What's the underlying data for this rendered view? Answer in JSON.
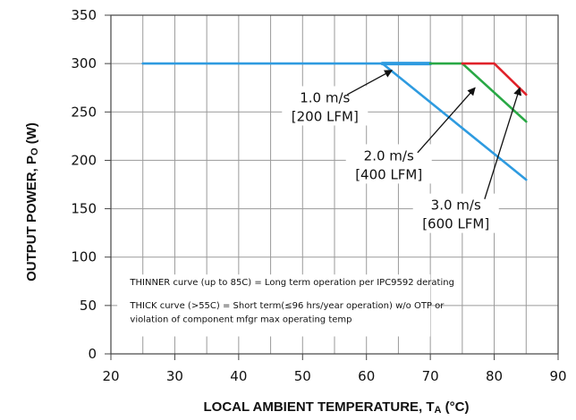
{
  "chart_data": {
    "type": "line",
    "xlabel": "LOCAL AMBIENT TEMPERATURE, T",
    "xlabel_sub": "A",
    "xlabel_tail": " (°C)",
    "ylabel": "OUTPUT POWER, P",
    "ylabel_sub": "O",
    "ylabel_tail": " (W)",
    "xlim": [
      20,
      90
    ],
    "ylim": [
      0,
      350
    ],
    "xticks": [
      20,
      30,
      40,
      50,
      60,
      70,
      80,
      90
    ],
    "yticks": [
      0,
      50,
      100,
      150,
      200,
      250,
      300,
      350
    ],
    "grid": true,
    "series": [
      {
        "color": "#2E9BE0",
        "points": [
          [
            25,
            300
          ],
          [
            62.5,
            300
          ],
          [
            85,
            180
          ]
        ]
      },
      {
        "color": "#2E9BE0",
        "thick": true,
        "points": [
          [
            62.5,
            300
          ],
          [
            70,
            300
          ]
        ]
      },
      {
        "color": "#29A845",
        "points": [
          [
            70,
            300
          ],
          [
            75,
            300
          ],
          [
            85,
            240
          ]
        ]
      },
      {
        "color": "#E0222A",
        "points": [
          [
            75,
            300
          ],
          [
            80,
            300
          ],
          [
            85,
            268
          ]
        ]
      }
    ],
    "annotations": [
      {
        "lines": [
          "1.0 m/s",
          "[200 LFM]"
        ],
        "x": 53.5,
        "y": 260,
        "arrow_from": [
          57,
          268
        ],
        "arrow_to": [
          64,
          293
        ]
      },
      {
        "lines": [
          "2.0 m/s",
          "[400 LFM]"
        ],
        "x": 63.5,
        "y": 200,
        "arrow_from": [
          68,
          208
        ],
        "arrow_to": [
          77,
          275
        ]
      },
      {
        "lines": [
          "3.0 m/s",
          "[600 LFM]"
        ],
        "x": 74,
        "y": 149,
        "arrow_from": [
          78.5,
          160
        ],
        "arrow_to": [
          84,
          275
        ]
      }
    ],
    "notes": [
      "THINNER curve (up to 85C) = Long term operation per IPC9592 derating",
      "THICK curve (>55C) = Short term(≤96 hrs/year operation) w/o OTP or",
      "violation of component mfgr max operating temp"
    ]
  }
}
